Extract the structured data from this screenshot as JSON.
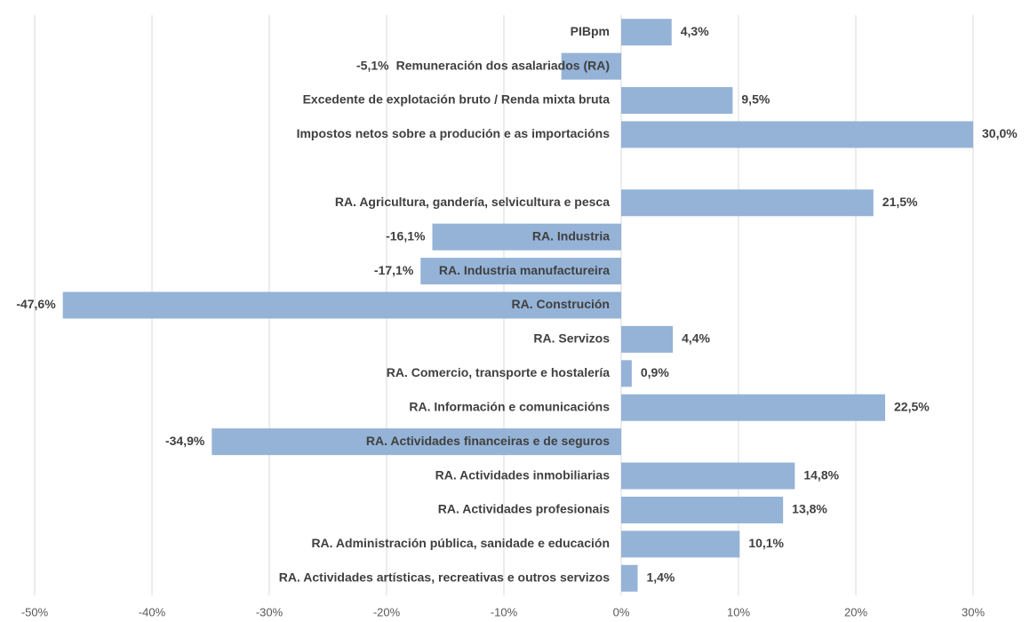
{
  "chart_data": {
    "type": "barh",
    "categories": [
      "PIBpm",
      "Remuneración dos asalariados (RA)",
      "Excedente de explotación bruto / Renda mixta bruta",
      "Impostos netos sobre a produción e as importacións",
      null,
      "RA. Agricultura, gandería, selvicultura e pesca",
      "RA. Industria",
      "RA. Industria manufactureira",
      "RA. Construción",
      "RA. Servizos",
      "RA. Comercio, transporte e hostalería",
      "RA. Información e comunicacións",
      "RA. Actividades financeiras e de seguros",
      "RA. Actividades inmobiliarias",
      "RA. Actividades profesionais",
      "RA. Administración pública, sanidade e educación",
      "RA. Actividades artísticas, recreativas e outros servizos"
    ],
    "values": [
      4.3,
      -5.1,
      9.5,
      30.0,
      null,
      21.5,
      -16.1,
      -17.1,
      -47.6,
      4.4,
      0.9,
      22.5,
      -34.9,
      14.8,
      13.8,
      10.1,
      1.4
    ],
    "value_labels": [
      "4,3%",
      "-5,1%",
      "9,5%",
      "30,0%",
      null,
      "21,5%",
      "-16,1%",
      "-17,1%",
      "-47,6%",
      "4,4%",
      "0,9%",
      "22,5%",
      "-34,9%",
      "14,8%",
      "13,8%",
      "10,1%",
      "1,4%"
    ],
    "color": "#95b3d7",
    "xlim": [
      -50,
      30
    ],
    "xticks": [
      {
        "value": -50,
        "label": "-50%"
      },
      {
        "value": -40,
        "label": "-40%"
      },
      {
        "value": -30,
        "label": "-30%"
      },
      {
        "value": -20,
        "label": "-20%"
      },
      {
        "value": -10,
        "label": "-10%"
      },
      {
        "value": 0,
        "label": "0%"
      },
      {
        "value": 10,
        "label": "10%"
      },
      {
        "value": 20,
        "label": "20%"
      },
      {
        "value": 30,
        "label": "30%"
      }
    ],
    "grid": true
  }
}
